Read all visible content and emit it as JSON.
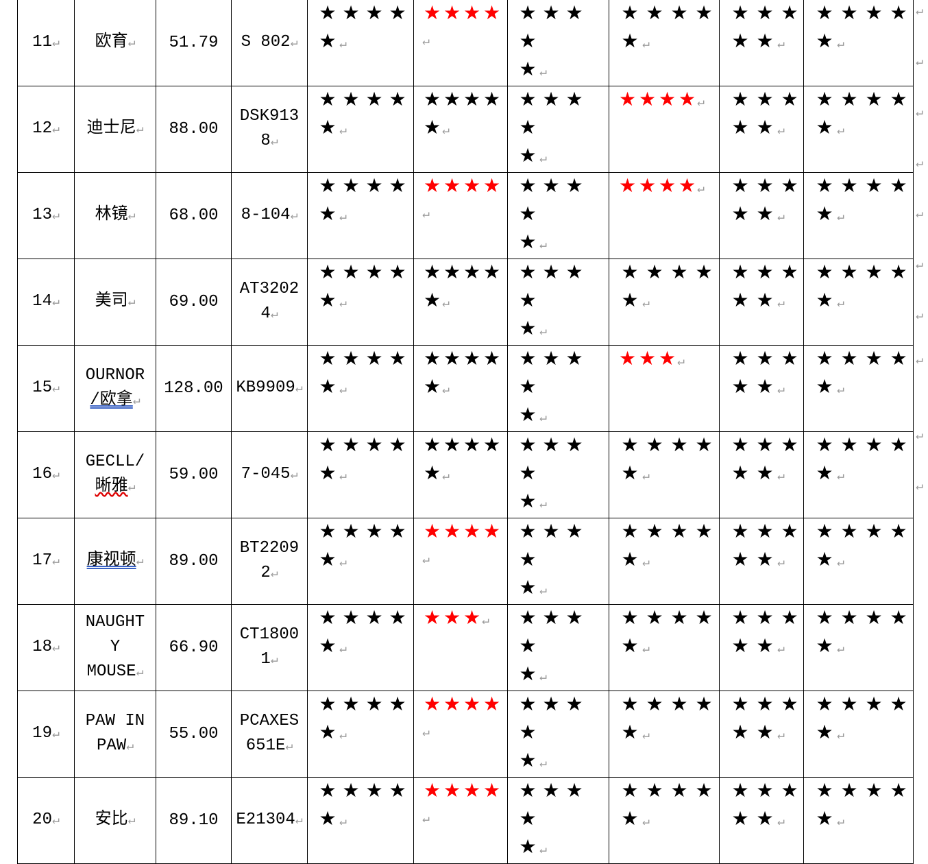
{
  "rows": [
    {
      "no": "11",
      "brand": [
        "欧育"
      ],
      "price": "51.79",
      "model": [
        "S 802"
      ],
      "ratings": [
        [
          5,
          "black"
        ],
        [
          4,
          "red"
        ],
        [
          5,
          "black"
        ],
        [
          5,
          "black"
        ],
        [
          5,
          "black"
        ],
        [
          5,
          "black"
        ]
      ]
    },
    {
      "no": "12",
      "brand": [
        "迪士尼"
      ],
      "price": "88.00",
      "model": [
        "DSK913",
        "8"
      ],
      "ratings": [
        [
          5,
          "black"
        ],
        [
          5,
          "black"
        ],
        [
          5,
          "black"
        ],
        [
          4,
          "red"
        ],
        [
          5,
          "black"
        ],
        [
          5,
          "black"
        ]
      ]
    },
    {
      "no": "13",
      "brand": [
        "林镜"
      ],
      "price": "68.00",
      "model": [
        "8-104"
      ],
      "ratings": [
        [
          5,
          "black"
        ],
        [
          4,
          "red"
        ],
        [
          5,
          "black"
        ],
        [
          4,
          "red"
        ],
        [
          5,
          "black"
        ],
        [
          5,
          "black"
        ]
      ]
    },
    {
      "no": "14",
      "brand": [
        "美司"
      ],
      "price": "69.00",
      "model": [
        "AT3202",
        "4"
      ],
      "ratings": [
        [
          5,
          "black"
        ],
        [
          5,
          "black"
        ],
        [
          5,
          "black"
        ],
        [
          5,
          "black"
        ],
        [
          5,
          "black"
        ],
        [
          5,
          "black"
        ]
      ]
    },
    {
      "no": "15",
      "brand": [
        "OURNOR",
        "/欧拿"
      ],
      "price": "128.00",
      "model": [
        "KB9909"
      ],
      "ratings": [
        [
          5,
          "black"
        ],
        [
          5,
          "black"
        ],
        [
          5,
          "black"
        ],
        [
          3,
          "red"
        ],
        [
          5,
          "black"
        ],
        [
          5,
          "black"
        ]
      ]
    },
    {
      "no": "16",
      "brand": [
        "GECLL/",
        "晰雅"
      ],
      "price": "59.00",
      "model": [
        "7-045"
      ],
      "ratings": [
        [
          5,
          "black"
        ],
        [
          5,
          "black"
        ],
        [
          5,
          "black"
        ],
        [
          5,
          "black"
        ],
        [
          5,
          "black"
        ],
        [
          5,
          "black"
        ]
      ]
    },
    {
      "no": "17",
      "brand": [
        "康视顿"
      ],
      "price": "89.00",
      "model": [
        "BT2209",
        "2"
      ],
      "ratings": [
        [
          5,
          "black"
        ],
        [
          4,
          "red"
        ],
        [
          5,
          "black"
        ],
        [
          5,
          "black"
        ],
        [
          5,
          "black"
        ],
        [
          5,
          "black"
        ]
      ]
    },
    {
      "no": "18",
      "brand": [
        "NAUGHT",
        "Y",
        "MOUSE"
      ],
      "price": "66.90",
      "model": [
        "CT1800",
        "1"
      ],
      "ratings": [
        [
          5,
          "black"
        ],
        [
          3,
          "red"
        ],
        [
          5,
          "black"
        ],
        [
          5,
          "black"
        ],
        [
          5,
          "black"
        ],
        [
          5,
          "black"
        ]
      ]
    },
    {
      "no": "19",
      "brand": [
        "PAW IN",
        "PAW"
      ],
      "price": "55.00",
      "model": [
        "PCAXES",
        "651E"
      ],
      "ratings": [
        [
          5,
          "black"
        ],
        [
          4,
          "red"
        ],
        [
          5,
          "black"
        ],
        [
          5,
          "black"
        ],
        [
          5,
          "black"
        ],
        [
          5,
          "black"
        ]
      ]
    },
    {
      "no": "20",
      "brand": [
        "安比"
      ],
      "price": "89.10",
      "model": [
        "E21304"
      ],
      "ratings": [
        [
          5,
          "black"
        ],
        [
          4,
          "red"
        ],
        [
          5,
          "black"
        ],
        [
          5,
          "black"
        ],
        [
          5,
          "black"
        ],
        [
          5,
          "black"
        ]
      ]
    }
  ],
  "colors": {
    "red_star": "#ff0000",
    "black_star": "#000000",
    "paragraph_mark": "#9a9a9a"
  },
  "paragraph_mark": "↵",
  "star_glyph": "★"
}
